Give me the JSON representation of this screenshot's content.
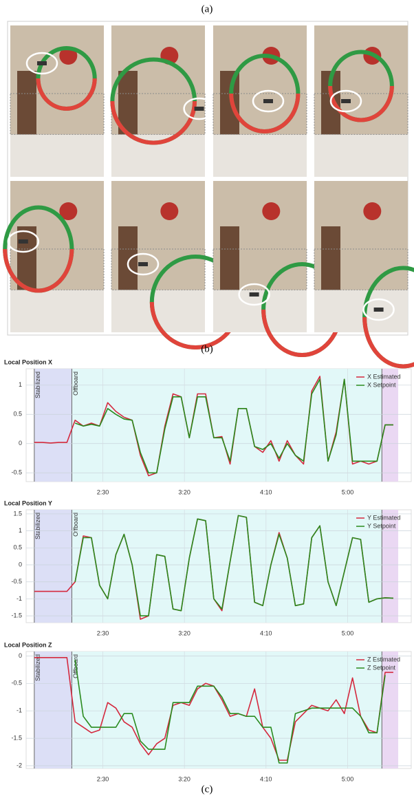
{
  "figure": {
    "labels": [
      "(a)",
      "(b)",
      "(c)"
    ]
  },
  "chart_data": [
    {
      "type": "line",
      "title": "Local Position X",
      "x": [
        108,
        113,
        118,
        123,
        128,
        133,
        138,
        143,
        148,
        153,
        158,
        163,
        168,
        173,
        178,
        183,
        188,
        193,
        198,
        203,
        208,
        213,
        218,
        223,
        228,
        233,
        238,
        243,
        248,
        253,
        258,
        263,
        268,
        273,
        278,
        283,
        288,
        293,
        298,
        303,
        308,
        313,
        318,
        323,
        328
      ],
      "series": [
        {
          "name": "X Estimated",
          "color": "#d4283d",
          "values": [
            0.02,
            0.02,
            0.01,
            0.02,
            0.02,
            0.4,
            0.3,
            0.35,
            0.3,
            0.7,
            0.55,
            0.45,
            0.4,
            -0.2,
            -0.55,
            -0.5,
            0.3,
            0.85,
            0.8,
            0.1,
            0.85,
            0.85,
            0.1,
            0.12,
            -0.35,
            0.6,
            0.6,
            -0.05,
            -0.15,
            0.05,
            -0.3,
            0.05,
            -0.2,
            -0.35,
            0.9,
            1.15,
            -0.3,
            0.2,
            1.1,
            -0.35,
            -0.3,
            -0.35,
            -0.3,
            0.32,
            0.32
          ]
        },
        {
          "name": "X Setpoint",
          "color": "#2a8a1e",
          "values": [
            null,
            null,
            null,
            null,
            null,
            0.35,
            0.3,
            0.33,
            0.3,
            0.6,
            0.5,
            0.42,
            0.4,
            -0.15,
            -0.5,
            -0.5,
            0.25,
            0.8,
            0.8,
            0.1,
            0.8,
            0.8,
            0.1,
            0.1,
            -0.3,
            0.6,
            0.6,
            -0.05,
            -0.1,
            0.0,
            -0.25,
            0.0,
            -0.2,
            -0.3,
            0.85,
            1.1,
            -0.3,
            0.15,
            1.1,
            -0.3,
            -0.3,
            -0.3,
            -0.3,
            0.32,
            0.32
          ]
        }
      ],
      "regions": [
        {
          "label": "Stabilized",
          "start": 108,
          "end": 131,
          "color": "#dcdff6",
          "label_color": "#4a5bbf"
        },
        {
          "label": "Offboard",
          "start": 131,
          "end": 321,
          "color": "#e2f8f8",
          "label_color": "#3cb4c4"
        },
        {
          "start": 321,
          "end": 331,
          "color": "#ead8f3"
        }
      ],
      "xlim": [
        103,
        339
      ],
      "ylim": [
        -0.65,
        1.28
      ],
      "xticks": [
        {
          "value": 150,
          "label": "2:30"
        },
        {
          "value": 200,
          "label": "3:20"
        },
        {
          "value": 250,
          "label": "4:10"
        },
        {
          "value": 300,
          "label": "5:00"
        }
      ],
      "yticks": [
        1,
        0.5,
        0,
        -0.5
      ],
      "grid": true,
      "legend": "upper right"
    },
    {
      "type": "line",
      "title": "Local Position Y",
      "x": [
        108,
        113,
        118,
        123,
        128,
        133,
        138,
        143,
        148,
        153,
        158,
        163,
        168,
        173,
        178,
        183,
        188,
        193,
        198,
        203,
        208,
        213,
        218,
        223,
        228,
        233,
        238,
        243,
        248,
        253,
        258,
        263,
        268,
        273,
        278,
        283,
        288,
        293,
        298,
        303,
        308,
        313,
        318,
        323,
        328
      ],
      "series": [
        {
          "name": "Y Estimated",
          "color": "#d4283d",
          "values": [
            -0.78,
            -0.78,
            -0.78,
            -0.78,
            -0.78,
            -0.5,
            0.85,
            0.8,
            -0.6,
            -1.0,
            0.3,
            0.9,
            0.0,
            -1.6,
            -1.5,
            0.3,
            0.25,
            -1.3,
            -1.35,
            0.2,
            1.35,
            1.3,
            -1.0,
            -1.35,
            0.1,
            1.45,
            1.4,
            -1.1,
            -1.2,
            0.0,
            0.95,
            0.2,
            -1.2,
            -1.15,
            0.8,
            1.15,
            -0.5,
            -1.2,
            -0.2,
            0.8,
            0.75,
            -1.1,
            -1.0,
            -0.97,
            -0.98
          ]
        },
        {
          "name": "Y Setpoint",
          "color": "#2a8a1e",
          "values": [
            null,
            null,
            null,
            null,
            null,
            -0.5,
            0.8,
            0.8,
            -0.6,
            -1.0,
            0.3,
            0.9,
            0.0,
            -1.5,
            -1.5,
            0.3,
            0.25,
            -1.3,
            -1.35,
            0.2,
            1.35,
            1.3,
            -1.0,
            -1.3,
            0.1,
            1.45,
            1.4,
            -1.1,
            -1.2,
            0.0,
            0.9,
            0.2,
            -1.2,
            -1.15,
            0.8,
            1.15,
            -0.5,
            -1.2,
            -0.2,
            0.8,
            0.75,
            -1.1,
            -1.0,
            -0.97,
            -0.98
          ]
        }
      ],
      "regions": [
        {
          "label": "Stabilized",
          "start": 108,
          "end": 131,
          "color": "#dcdff6",
          "label_color": "#4a5bbf"
        },
        {
          "label": "Offboard",
          "start": 131,
          "end": 321,
          "color": "#e2f8f8",
          "label_color": "#3cb4c4"
        },
        {
          "start": 321,
          "end": 331,
          "color": "#ead8f3"
        }
      ],
      "xlim": [
        103,
        339
      ],
      "ylim": [
        -1.7,
        1.62
      ],
      "xticks": [
        {
          "value": 150,
          "label": "2:30"
        },
        {
          "value": 200,
          "label": "3:20"
        },
        {
          "value": 250,
          "label": "4:10"
        },
        {
          "value": 300,
          "label": "5:00"
        }
      ],
      "yticks": [
        1.5,
        1,
        0.5,
        0,
        -0.5,
        -1,
        -1.5
      ],
      "grid": true,
      "legend": "upper right"
    },
    {
      "type": "line",
      "title": "Local Position Z",
      "x": [
        108,
        113,
        118,
        123,
        128,
        133,
        138,
        143,
        148,
        153,
        158,
        163,
        168,
        173,
        178,
        183,
        188,
        193,
        198,
        203,
        208,
        213,
        218,
        223,
        228,
        233,
        238,
        243,
        248,
        253,
        258,
        263,
        268,
        273,
        278,
        283,
        288,
        293,
        298,
        303,
        308,
        313,
        318,
        323,
        328
      ],
      "series": [
        {
          "name": "Z Estimated",
          "color": "#d4283d",
          "values": [
            -0.03,
            -0.03,
            -0.03,
            -0.03,
            -0.03,
            -1.2,
            -1.3,
            -1.4,
            -1.35,
            -0.85,
            -0.95,
            -1.2,
            -1.3,
            -1.6,
            -1.8,
            -1.6,
            -1.5,
            -0.9,
            -0.85,
            -0.9,
            -0.6,
            -0.5,
            -0.55,
            -0.8,
            -1.1,
            -1.05,
            -1.1,
            -0.6,
            -1.3,
            -1.5,
            -1.9,
            -1.9,
            -1.2,
            -1.05,
            -0.9,
            -0.95,
            -1.0,
            -0.8,
            -1.05,
            -0.4,
            -1.1,
            -1.35,
            -1.4,
            -0.3,
            -0.3
          ]
        },
        {
          "name": "Z Setpoint",
          "color": "#2a8a1e",
          "values": [
            null,
            null,
            null,
            null,
            null,
            -0.07,
            -1.1,
            -1.3,
            -1.3,
            -1.3,
            -1.3,
            -1.05,
            -1.05,
            -1.55,
            -1.7,
            -1.7,
            -1.7,
            -0.85,
            -0.85,
            -0.85,
            -0.55,
            -0.55,
            -0.55,
            -0.75,
            -1.05,
            -1.05,
            -1.1,
            -1.1,
            -1.3,
            -1.3,
            -1.95,
            -1.95,
            -1.05,
            -1.0,
            -0.95,
            -0.95,
            -0.95,
            -0.95,
            -0.95,
            -0.95,
            -1.1,
            -1.4,
            -1.4,
            -0.35,
            null
          ]
        }
      ],
      "regions": [
        {
          "label": "Stabilized",
          "start": 108,
          "end": 131,
          "color": "#dcdff6",
          "label_color": "#4a5bbf"
        },
        {
          "label": "Offboard",
          "start": 131,
          "end": 321,
          "color": "#e2f8f8",
          "label_color": "#3cb4c4"
        },
        {
          "start": 321,
          "end": 331,
          "color": "#ead8f3"
        }
      ],
      "xlim": [
        103,
        339
      ],
      "ylim": [
        -2.05,
        0.08
      ],
      "xticks": [
        {
          "value": 150,
          "label": "2:30"
        },
        {
          "value": 200,
          "label": "3:20"
        },
        {
          "value": 250,
          "label": "4:10"
        },
        {
          "value": 300,
          "label": "5:00"
        }
      ],
      "yticks": [
        0,
        -0.5,
        -1,
        -1.5,
        -2
      ],
      "grid": true,
      "legend": "upper right"
    }
  ]
}
